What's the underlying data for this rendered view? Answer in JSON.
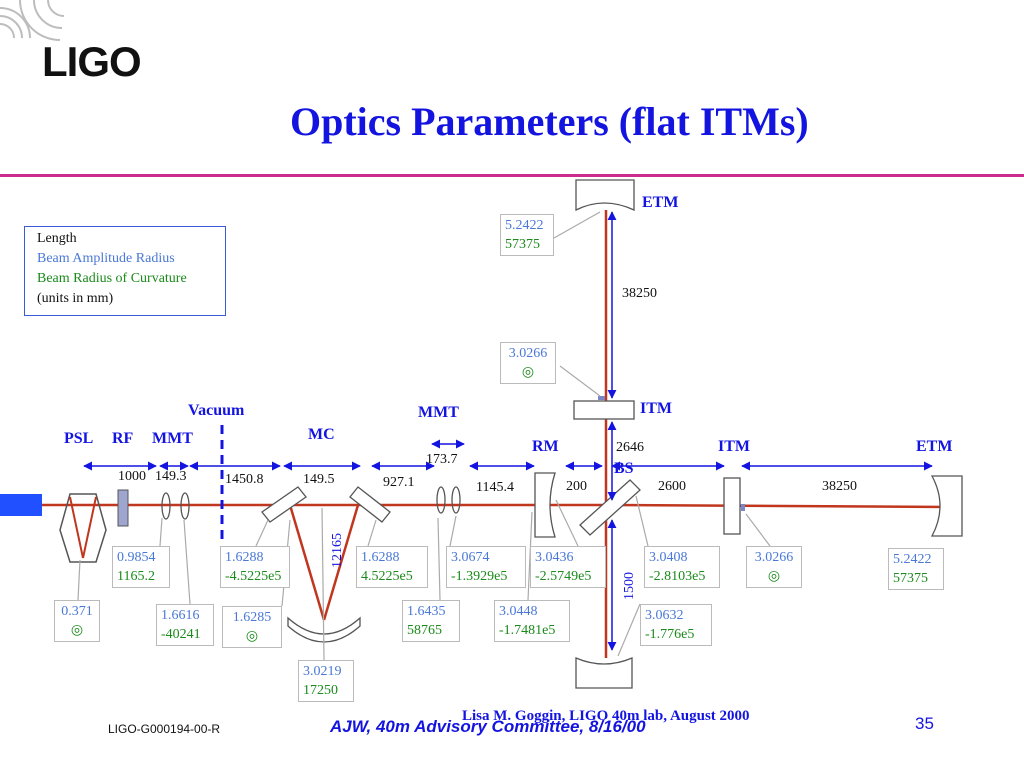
{
  "logo_text": "LIGO",
  "title": "Optics Parameters (flat ITMs)",
  "legend": {
    "length": "Length",
    "amplitude": "Beam Amplitude Radius",
    "curvature": "Beam Radius of Curvature",
    "units": "(units in mm)"
  },
  "colors": {
    "title": "#1414e0",
    "rule": "#cc2a8c",
    "beam": "#c0361e",
    "amplitude": "#4a78d6",
    "curvature": "#1a8a1a"
  },
  "labels": {
    "psl": "PSL",
    "rf": "RF",
    "mmt1": "MMT",
    "vacuum": "Vacuum",
    "mc": "MC",
    "mmt2": "MMT",
    "rm": "RM",
    "bs": "BS",
    "itm_x": "ITM",
    "etm_x": "ETM",
    "itm_y": "ITM",
    "etm_y": "ETM"
  },
  "lengths": {
    "l1000": "1000",
    "l149_3": "149.3",
    "l1450": "1450.8",
    "l149_5": "149.5",
    "l927": "927.1",
    "l173": "173.7",
    "l1145": "1145.4",
    "l200": "200",
    "l2646": "2646",
    "l2600": "2600",
    "l38250x": "38250",
    "l38250y": "38250",
    "l12165": "12165",
    "l1500": "1500"
  },
  "boxes": {
    "etm_y": {
      "amp": "5.2422",
      "curv": "57375"
    },
    "itm_y": {
      "amp": "3.0266",
      "curv": "◎"
    },
    "psl": {
      "amp": "0.371",
      "curv": "◎"
    },
    "rf": {
      "amp": "0.9854",
      "curv": "1165.2"
    },
    "mmt1a": {
      "amp": "1.6616",
      "curv": "-40241"
    },
    "mc_in": {
      "amp": "1.6288",
      "curv": "-4.5225e5"
    },
    "mc_waist": {
      "amp": "1.6285",
      "curv": "◎"
    },
    "mc_out": {
      "amp": "1.6288",
      "curv": "4.5225e5"
    },
    "mc_end": {
      "amp": "3.0219",
      "curv": "17250"
    },
    "mmt2a": {
      "amp": "1.6435",
      "curv": "58765"
    },
    "mmt2b": {
      "amp": "3.0674",
      "curv": "-1.3929e5"
    },
    "rm_in": {
      "amp": "3.0448",
      "curv": "-1.7481e5"
    },
    "rm_out": {
      "amp": "3.0436",
      "curv": "-2.5749e5"
    },
    "bs_x": {
      "amp": "3.0408",
      "curv": "-2.8103e5"
    },
    "bs_y": {
      "amp": "3.0632",
      "curv": "-1.776e5"
    },
    "itm_x": {
      "amp": "3.0266",
      "curv": "◎"
    },
    "etm_x": {
      "amp": "5.2422",
      "curv": "57375"
    }
  },
  "footer": {
    "doc_id": "LIGO-G000194-00-R",
    "center": "AJW, 40m Advisory Committee, 8/16/00",
    "overlap": "Lisa M. Goggin, LIGO 40m lab, August 2000",
    "page": "35"
  }
}
